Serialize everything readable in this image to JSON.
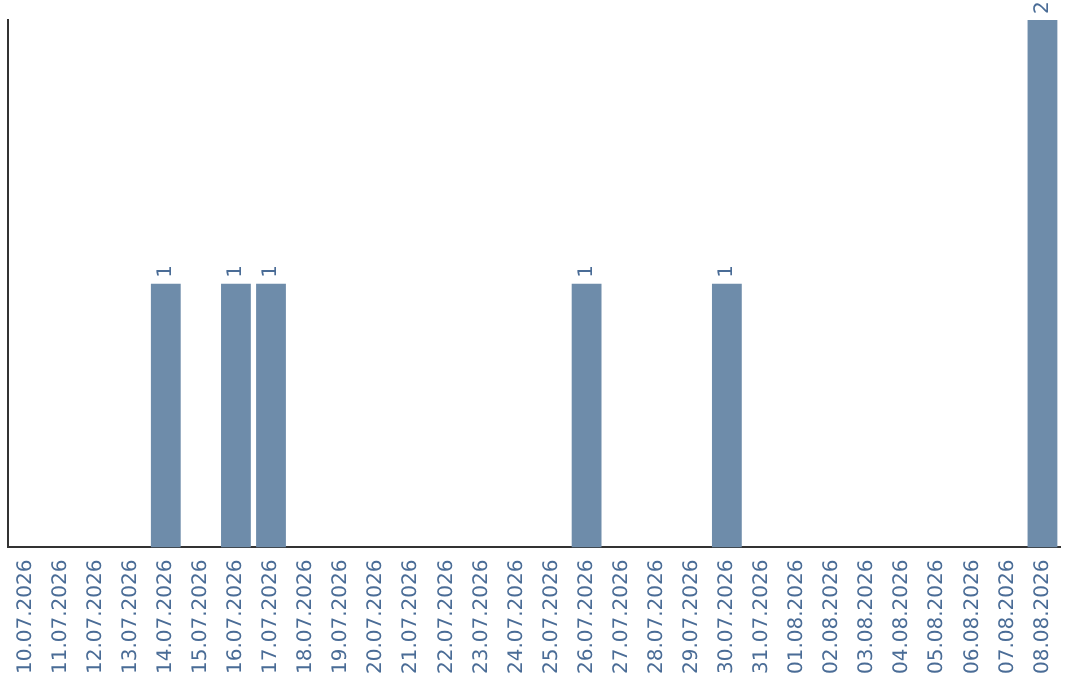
{
  "chart_data": {
    "type": "bar",
    "categories": [
      "10.07.2026",
      "11.07.2026",
      "12.07.2026",
      "13.07.2026",
      "14.07.2026",
      "15.07.2026",
      "16.07.2026",
      "17.07.2026",
      "18.07.2026",
      "19.07.2026",
      "20.07.2026",
      "21.07.2026",
      "22.07.2026",
      "23.07.2026",
      "24.07.2026",
      "25.07.2026",
      "26.07.2026",
      "27.07.2026",
      "28.07.2026",
      "29.07.2026",
      "30.07.2026",
      "31.07.2026",
      "01.08.2026",
      "02.08.2026",
      "03.08.2026",
      "04.08.2026",
      "05.08.2026",
      "06.08.2026",
      "07.08.2026",
      "08.08.2026"
    ],
    "values": [
      0,
      0,
      0,
      0,
      1,
      0,
      1,
      1,
      0,
      0,
      0,
      0,
      0,
      0,
      0,
      0,
      1,
      0,
      0,
      0,
      1,
      0,
      0,
      0,
      0,
      0,
      0,
      0,
      0,
      2
    ],
    "value_labels": [
      null,
      null,
      null,
      null,
      "1",
      null,
      "1",
      "1",
      null,
      null,
      null,
      null,
      null,
      null,
      null,
      null,
      "1",
      null,
      null,
      null,
      "1",
      null,
      null,
      null,
      null,
      null,
      null,
      null,
      null,
      "2"
    ],
    "color": "#6e8caa",
    "grid": false,
    "legend": false,
    "tick_labels": "x"
  }
}
